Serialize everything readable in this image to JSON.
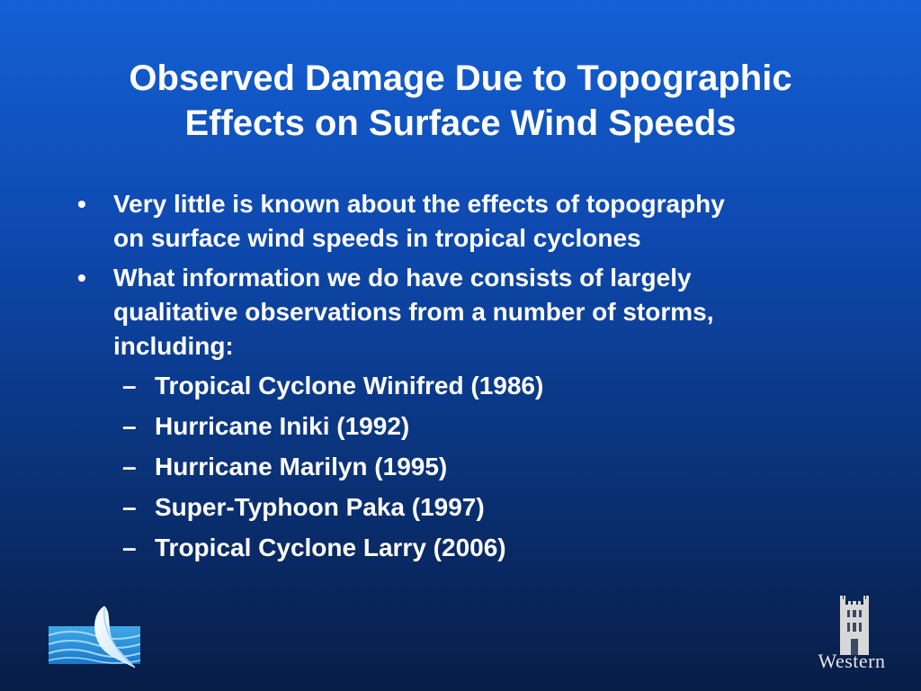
{
  "slide": {
    "title_lines": [
      "Observed Damage Due to Topographic",
      "Effects on Surface Wind Speeds"
    ],
    "bullets": [
      {
        "marker": "•",
        "lines": [
          "Very little is known about the effects of topography",
          "on surface wind speeds in tropical cyclones"
        ]
      },
      {
        "marker": "•",
        "lines": [
          "What information we do have consists of largely",
          "qualitative observations from a number of storms,",
          "including:"
        ]
      }
    ],
    "sub_bullets": [
      {
        "marker": "–",
        "text": "Tropical Cyclone Winifred (1986)"
      },
      {
        "marker": "–",
        "text": "Hurricane Iniki (1992)"
      },
      {
        "marker": "–",
        "text": "Hurricane Marilyn (1995)"
      },
      {
        "marker": "–",
        "text": "Super-Typhoon Paka (1997)"
      },
      {
        "marker": "–",
        "text": "Tropical Cyclone Larry (2006)"
      }
    ]
  },
  "logos": {
    "left_icon": "wind-wave-logo-icon",
    "right_icon": "western-tower-logo-icon",
    "right_wordmark": "Western"
  }
}
